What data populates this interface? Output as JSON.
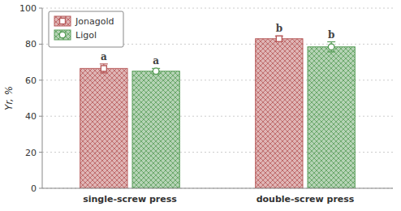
{
  "chart_data": {
    "type": "bar",
    "categories": [
      "single-screw press",
      "double-screw press"
    ],
    "series": [
      {
        "name": "Jonagold",
        "color": "#b85c5c",
        "marker": "square",
        "values": [
          66.5,
          83.0
        ],
        "errors": [
          2.5,
          1.5
        ],
        "significance_labels": [
          "a",
          "b"
        ]
      },
      {
        "name": "Ligol",
        "color": "#5a9e5a",
        "marker": "circle",
        "values": [
          65.0,
          78.5
        ],
        "errors": [
          1.5,
          2.8
        ],
        "significance_labels": [
          "a",
          "b"
        ]
      }
    ],
    "y_label": "Yr, %",
    "ylim": [
      0,
      100
    ],
    "yticks": [
      0,
      20,
      40,
      60,
      80,
      100
    ],
    "grid": true,
    "legend": "upper left"
  }
}
